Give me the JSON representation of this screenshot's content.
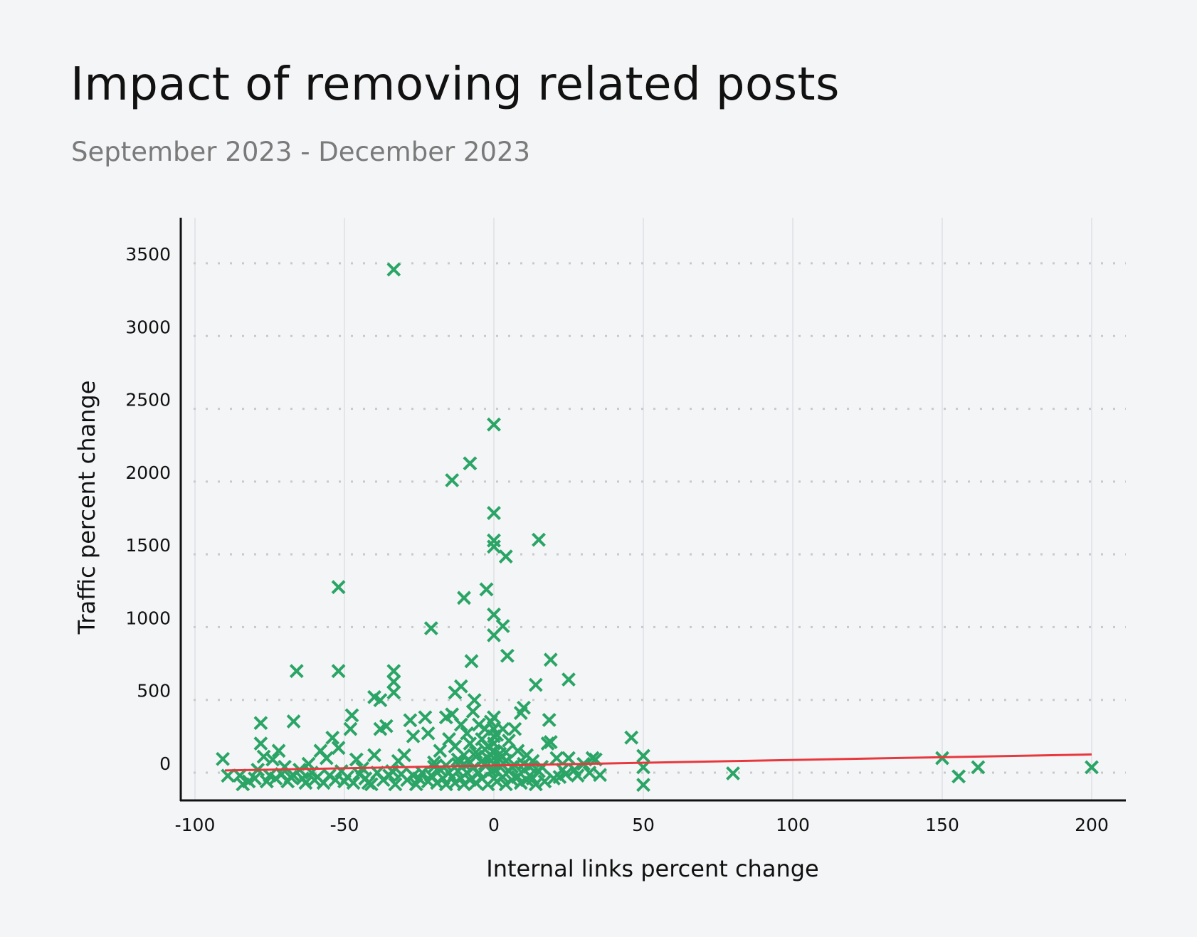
{
  "chart_data": {
    "type": "scatter",
    "title": "Impact of removing related posts",
    "subtitle": "September 2023 - December 2023",
    "xlabel": "Internal links percent change",
    "ylabel": "Traffic percent change",
    "xlim": [
      -102,
      212
    ],
    "ylim": [
      -190,
      3790
    ],
    "xticks": [
      -100,
      -50,
      0,
      50,
      100,
      150,
      200
    ],
    "yticks": [
      0,
      500,
      1000,
      1500,
      2000,
      2500,
      3000,
      3500
    ],
    "grid": {
      "x": "solid",
      "y": "dotted"
    },
    "marker": "x",
    "colors": {
      "points": "#2aa566",
      "trend": "#e8383d"
    },
    "trendline": {
      "x": [
        -90,
        200
      ],
      "y": [
        15,
        125
      ]
    },
    "points": [
      [
        -33.5,
        3457
      ],
      [
        0,
        2392
      ],
      [
        -8,
        2125
      ],
      [
        -14,
        2009
      ],
      [
        0,
        1784
      ],
      [
        0,
        1595
      ],
      [
        0,
        1553
      ],
      [
        15,
        1600
      ],
      [
        4,
        1485
      ],
      [
        -52,
        1275
      ],
      [
        -2.5,
        1259
      ],
      [
        -10,
        1201
      ],
      [
        0,
        1086
      ],
      [
        3,
        1007
      ],
      [
        0,
        944
      ],
      [
        -21,
        992
      ],
      [
        -66,
        698
      ],
      [
        -52,
        698
      ],
      [
        -33.5,
        698
      ],
      [
        -7.5,
        766
      ],
      [
        4.5,
        803
      ],
      [
        19,
        776
      ],
      [
        25,
        640
      ],
      [
        14,
        603
      ],
      [
        -33.5,
        624
      ],
      [
        -33.5,
        551
      ],
      [
        -11,
        593
      ],
      [
        -13,
        551
      ],
      [
        -40,
        519
      ],
      [
        -38,
        498
      ],
      [
        -6.5,
        498
      ],
      [
        -47.5,
        394
      ],
      [
        -67,
        352
      ],
      [
        -78,
        341
      ],
      [
        10,
        446
      ],
      [
        18.5,
        362
      ],
      [
        46,
        241
      ],
      [
        50,
        115
      ],
      [
        50,
        37
      ],
      [
        50,
        -84
      ],
      [
        80,
        -5
      ],
      [
        150,
        100
      ],
      [
        155.5,
        -26
      ],
      [
        162,
        37
      ],
      [
        200,
        37
      ],
      [
        -90.7,
        94
      ],
      [
        -89,
        -21
      ],
      [
        35.5,
        -16
      ],
      [
        33,
        100
      ],
      [
        -78,
        200
      ],
      [
        -77,
        110
      ],
      [
        -74,
        90
      ],
      [
        -72,
        150
      ],
      [
        -70,
        40
      ],
      [
        -68,
        -30
      ],
      [
        -65,
        20
      ],
      [
        -62,
        60
      ],
      [
        -60,
        -50
      ],
      [
        -58,
        150
      ],
      [
        -56,
        100
      ],
      [
        -54,
        240
      ],
      [
        -52,
        170
      ],
      [
        -50,
        -60
      ],
      [
        -48,
        300
      ],
      [
        -46,
        90
      ],
      [
        -44,
        30
      ],
      [
        -42,
        -70
      ],
      [
        -40,
        120
      ],
      [
        -38,
        300
      ],
      [
        -36,
        320
      ],
      [
        -34,
        10
      ],
      [
        -32,
        80
      ],
      [
        -30,
        120
      ],
      [
        -28,
        360
      ],
      [
        -27,
        250
      ],
      [
        -25,
        -40
      ],
      [
        -23,
        380
      ],
      [
        -22,
        270
      ],
      [
        -20,
        70
      ],
      [
        -18,
        150
      ],
      [
        -16,
        380
      ],
      [
        -15,
        230
      ],
      [
        -14,
        400
      ],
      [
        -13,
        180
      ],
      [
        -12,
        90
      ],
      [
        -11,
        330
      ],
      [
        -10,
        60
      ],
      [
        -9,
        270
      ],
      [
        -8,
        200
      ],
      [
        -7,
        420
      ],
      [
        -6,
        140
      ],
      [
        -5,
        330
      ],
      [
        -4,
        230
      ],
      [
        -3,
        300
      ],
      [
        -2,
        180
      ],
      [
        -1,
        350
      ],
      [
        0,
        380
      ],
      [
        0,
        300
      ],
      [
        0,
        250
      ],
      [
        0,
        200
      ],
      [
        0,
        150
      ],
      [
        0,
        100
      ],
      [
        0,
        60
      ],
      [
        0,
        20
      ],
      [
        0,
        -40
      ],
      [
        1,
        260
      ],
      [
        2,
        130
      ],
      [
        3,
        300
      ],
      [
        4,
        80
      ],
      [
        5,
        220
      ],
      [
        6,
        40
      ],
      [
        7,
        300
      ],
      [
        8,
        150
      ],
      [
        9,
        410
      ],
      [
        10,
        60
      ],
      [
        11,
        120
      ],
      [
        12,
        -20
      ],
      [
        13,
        80
      ],
      [
        14,
        -80
      ],
      [
        16,
        40
      ],
      [
        17,
        -60
      ],
      [
        18,
        200
      ],
      [
        19,
        210
      ],
      [
        20,
        -40
      ],
      [
        21,
        100
      ],
      [
        22,
        -30
      ],
      [
        23,
        20
      ],
      [
        24,
        -10
      ],
      [
        25,
        100
      ],
      [
        27,
        20
      ],
      [
        28,
        -20
      ],
      [
        30,
        60
      ],
      [
        32,
        0
      ],
      [
        34,
        90
      ],
      [
        -85,
        -20
      ],
      [
        -84,
        -80
      ],
      [
        -82,
        -60
      ],
      [
        -80,
        -40
      ],
      [
        -79,
        20
      ],
      [
        -76,
        -60
      ],
      [
        -75,
        -20
      ],
      [
        -73,
        -40
      ],
      [
        -71,
        -10
      ],
      [
        -69,
        -60
      ],
      [
        -67,
        -20
      ],
      [
        -64,
        -40
      ],
      [
        -63,
        -70
      ],
      [
        -61,
        0
      ],
      [
        -59,
        -30
      ],
      [
        -57,
        -70
      ],
      [
        -55,
        -20
      ],
      [
        -53,
        -50
      ],
      [
        -51,
        10
      ],
      [
        -49,
        -30
      ],
      [
        -47,
        -70
      ],
      [
        -45,
        -10
      ],
      [
        -43,
        -40
      ],
      [
        -41,
        -80
      ],
      [
        -39,
        0
      ],
      [
        -37,
        -50
      ],
      [
        -35,
        -20
      ],
      [
        -33,
        -80
      ],
      [
        -31,
        -10
      ],
      [
        -29,
        -50
      ],
      [
        -27,
        -20
      ],
      [
        -26,
        -80
      ],
      [
        -24,
        0
      ],
      [
        -22,
        -60
      ],
      [
        -21,
        -20
      ],
      [
        -19,
        -70
      ],
      [
        -18,
        20
      ],
      [
        -17,
        -40
      ],
      [
        -16,
        -80
      ],
      [
        -15,
        0
      ],
      [
        -14,
        -30
      ],
      [
        -13,
        -70
      ],
      [
        -12,
        10
      ],
      [
        -11,
        -40
      ],
      [
        -10,
        -80
      ],
      [
        -9,
        0
      ],
      [
        -8,
        -50
      ],
      [
        -7,
        30
      ],
      [
        -6,
        -70
      ],
      [
        -5,
        0
      ],
      [
        -4,
        -40
      ],
      [
        -3,
        60
      ],
      [
        -2,
        -80
      ],
      [
        -1,
        10
      ],
      [
        1,
        -60
      ],
      [
        2,
        40
      ],
      [
        3,
        -30
      ],
      [
        4,
        -80
      ],
      [
        5,
        10
      ],
      [
        6,
        -50
      ],
      [
        7,
        50
      ],
      [
        8,
        -30
      ],
      [
        9,
        -70
      ],
      [
        10,
        20
      ],
      [
        11,
        -50
      ],
      [
        12,
        40
      ],
      [
        13,
        -40
      ],
      [
        15,
        10
      ],
      [
        -20,
        40
      ],
      [
        -16,
        50
      ],
      [
        -12,
        60
      ],
      [
        -8,
        70
      ],
      [
        -4,
        80
      ],
      [
        -2,
        100
      ],
      [
        2,
        90
      ],
      [
        -6,
        110
      ],
      [
        -10,
        120
      ],
      [
        4,
        140
      ],
      [
        -3,
        160
      ]
    ]
  }
}
